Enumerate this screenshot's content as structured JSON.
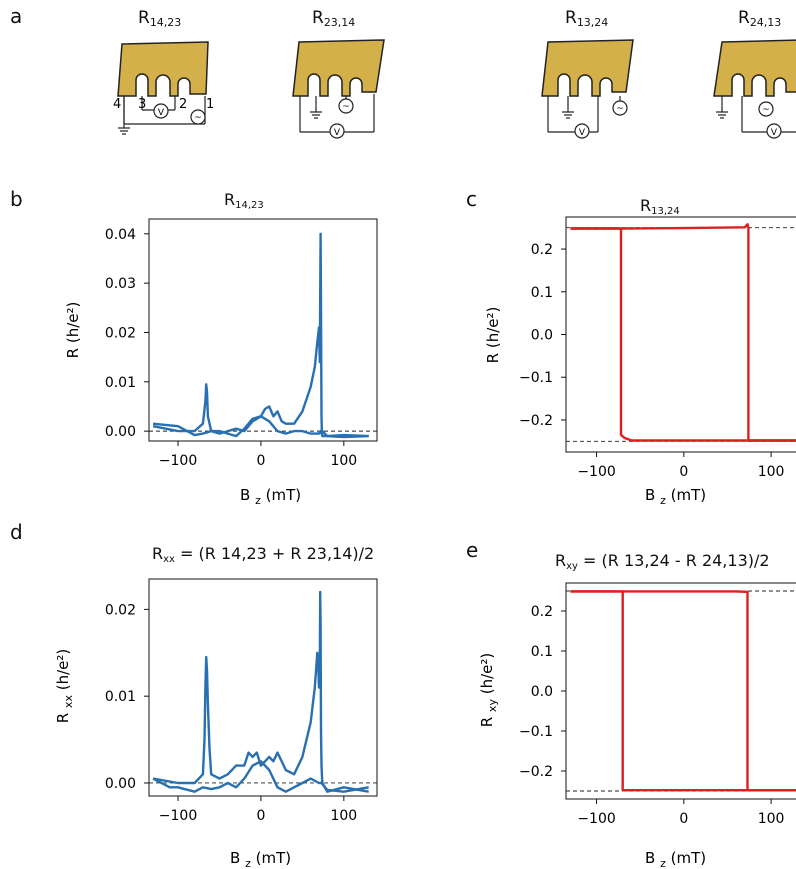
{
  "panels": {
    "a": "a",
    "b": "b",
    "c": "c",
    "d": "d",
    "e": "e"
  },
  "schematics": [
    {
      "label": "R",
      "sub": "14,23",
      "pins": [
        "4",
        "3",
        "2",
        "1"
      ],
      "v": "V"
    },
    {
      "label": "R",
      "sub": "23,14",
      "v": "V"
    },
    {
      "label": "R",
      "sub": "13,24",
      "v": "V"
    },
    {
      "label": "R",
      "sub": "24,13",
      "v": "V"
    }
  ],
  "colors": {
    "blue": "#2870b1",
    "red": "#dd1f1f",
    "gold": "#d4b04a"
  },
  "chart_data": [
    {
      "id": "b",
      "type": "line",
      "title": {
        "main": "R",
        "sub": "14,23",
        "rest": ""
      },
      "ylabel": {
        "main": "R",
        "sub": "",
        "rest": "(h/e²)"
      },
      "xlabel": {
        "main": "B",
        "sub": "z",
        "rest": "(mT)"
      },
      "xlim": [
        -135,
        140
      ],
      "ylim": [
        -0.002,
        0.043
      ],
      "xticks": [
        -100,
        0,
        100
      ],
      "xticklabels": [
        "−100",
        "0",
        "100"
      ],
      "yticks": [
        0,
        0.01,
        0.02,
        0.03,
        0.04
      ],
      "yticklabels": [
        "0.00",
        "0.01",
        "0.02",
        "0.03",
        "0.04"
      ],
      "hlines": [
        0
      ],
      "color": "#2870b1",
      "series": [
        {
          "x": [
            -130,
            -100,
            -80,
            -70,
            -67,
            -66,
            -65,
            -64,
            -60,
            -50,
            -40,
            -30,
            -20,
            -15,
            -10,
            -5,
            0,
            5,
            10,
            15,
            20,
            25,
            30,
            40,
            50,
            60,
            65,
            68,
            70,
            71,
            72,
            72.5,
            73,
            73.5,
            74,
            80,
            100,
            130
          ],
          "y": [
            0.001,
            0.0,
            0.0,
            0.0015,
            0.006,
            0.0095,
            0.008,
            0.003,
            0.0,
            -0.0005,
            0.0,
            0.0005,
            0.0,
            0.001,
            0.002,
            0.0025,
            0.003,
            0.0045,
            0.005,
            0.003,
            0.004,
            0.002,
            0.0015,
            0.0015,
            0.004,
            0.009,
            0.013,
            0.018,
            0.021,
            0.014,
            0.04,
            0.025,
            0.003,
            -0.0005,
            -0.001,
            -0.001,
            -0.0008,
            -0.001
          ]
        },
        {
          "x": [
            -130,
            -100,
            -80,
            -70,
            -60,
            -50,
            -40,
            -30,
            -20,
            -10,
            0,
            10,
            20,
            30,
            40,
            50,
            60,
            70,
            72,
            73,
            74,
            80,
            100,
            130
          ],
          "y": [
            0.0015,
            0.001,
            -0.0008,
            -0.0005,
            0.0,
            0.0,
            -0.0005,
            -0.001,
            0.0005,
            0.0025,
            0.003,
            0.002,
            0.0,
            -0.0005,
            0.0,
            0.0,
            -0.0005,
            -0.0005,
            0.0,
            -0.0005,
            0.0,
            -0.001,
            -0.0012,
            -0.001
          ]
        }
      ]
    },
    {
      "id": "c",
      "type": "line",
      "title": {
        "main": "R",
        "sub": "13,24",
        "rest": ""
      },
      "ylabel": {
        "main": "R",
        "sub": "",
        "rest": "(h/e²)"
      },
      "xlabel": {
        "main": "B",
        "sub": "z",
        "rest": "(mT)"
      },
      "xlim": [
        -135,
        140
      ],
      "ylim": [
        -0.275,
        0.275
      ],
      "xticks": [
        -100,
        0,
        100
      ],
      "xticklabels": [
        "−100",
        "0",
        "100"
      ],
      "yticks": [
        -0.2,
        -0.1,
        0.0,
        0.1,
        0.2
      ],
      "yticklabels": [
        "−0.2",
        "−0.1",
        "0.0",
        "0.1",
        "0.2"
      ],
      "hlines": [
        0.25,
        -0.25
      ],
      "color": "#dd1f1f",
      "series": [
        {
          "x": [
            -130,
            -72,
            -72,
            -68,
            -60,
            0,
            60,
            72,
            74,
            74,
            130
          ],
          "y": [
            0.248,
            0.248,
            -0.235,
            -0.242,
            -0.248,
            -0.248,
            -0.248,
            -0.248,
            -0.248,
            -0.248,
            -0.248
          ]
        },
        {
          "x": [
            -130,
            -72,
            0,
            70,
            73,
            74,
            74,
            130
          ],
          "y": [
            0.248,
            0.248,
            0.249,
            0.251,
            0.258,
            0.25,
            -0.248,
            -0.248
          ]
        }
      ]
    },
    {
      "id": "d",
      "type": "line",
      "title": {
        "main": "R",
        "sub": "xx",
        "rest": " = (R 14,23 + R 23,14)/2"
      },
      "ylabel": {
        "main": "R",
        "sub": "xx",
        "rest": "(h/e²)"
      },
      "xlabel": {
        "main": "B",
        "sub": "z",
        "rest": "(mT)"
      },
      "xlim": [
        -135,
        140
      ],
      "ylim": [
        -0.0015,
        0.0235
      ],
      "xticks": [
        -100,
        0,
        100
      ],
      "xticklabels": [
        "−100",
        "0",
        "100"
      ],
      "yticks": [
        0,
        0.01,
        0.02
      ],
      "yticklabels": [
        "0.00",
        "0.01",
        "0.02"
      ],
      "hlines": [
        0
      ],
      "color": "#2870b1",
      "series": [
        {
          "x": [
            -130,
            -100,
            -80,
            -70,
            -68,
            -67,
            -66,
            -65,
            -64,
            -62,
            -60,
            -50,
            -40,
            -30,
            -20,
            -15,
            -10,
            -5,
            0,
            5,
            10,
            15,
            20,
            25,
            30,
            40,
            50,
            60,
            65,
            68,
            69,
            70,
            71,
            71.5,
            72,
            72.5,
            73,
            74,
            80,
            100,
            130
          ],
          "y": [
            0.0005,
            0.0,
            0.0,
            0.001,
            0.005,
            0.011,
            0.0145,
            0.013,
            0.009,
            0.004,
            0.001,
            0.0005,
            0.001,
            0.002,
            0.002,
            0.0035,
            0.003,
            0.0035,
            0.002,
            0.0025,
            0.003,
            0.0025,
            0.0035,
            0.0025,
            0.0015,
            0.001,
            0.003,
            0.007,
            0.011,
            0.015,
            0.014,
            0.011,
            0.013,
            0.022,
            0.018,
            0.006,
            0.002,
            0.0,
            -0.001,
            -0.0005,
            -0.001
          ]
        },
        {
          "x": [
            -130,
            -110,
            -100,
            -80,
            -70,
            -60,
            -50,
            -40,
            -30,
            -20,
            -10,
            0,
            10,
            20,
            30,
            40,
            50,
            60,
            70,
            73,
            80,
            100,
            130
          ],
          "y": [
            0.0005,
            -0.0005,
            -0.0005,
            -0.001,
            -0.0005,
            -0.0007,
            -0.0005,
            0.0,
            -0.0005,
            0.0005,
            0.002,
            0.0025,
            0.0015,
            -0.0005,
            -0.001,
            -0.0005,
            0.0,
            0.0005,
            0.0,
            0.0,
            -0.0008,
            -0.001,
            -0.0005
          ]
        }
      ]
    },
    {
      "id": "e",
      "type": "line",
      "title": {
        "main": "R",
        "sub": "xy",
        "rest": " = (R 13,24 - R 24,13)/2"
      },
      "ylabel": {
        "main": "R",
        "sub": "xy",
        "rest": "(h/e²)"
      },
      "xlabel": {
        "main": "B",
        "sub": "z",
        "rest": "(mT)"
      },
      "xlim": [
        -135,
        140
      ],
      "ylim": [
        -0.27,
        0.27
      ],
      "xticks": [
        -100,
        0,
        100
      ],
      "xticklabels": [
        "−100",
        "0",
        "100"
      ],
      "yticks": [
        -0.2,
        -0.1,
        0.0,
        0.1,
        0.2
      ],
      "yticklabels": [
        "−0.2",
        "−0.1",
        "0.0",
        "0.1",
        "0.2"
      ],
      "hlines": [
        0.25,
        -0.25
      ],
      "color": "#dd1f1f",
      "series": [
        {
          "x": [
            -130,
            -70,
            -70,
            -60,
            0,
            60,
            73,
            73,
            130
          ],
          "y": [
            0.249,
            0.249,
            -0.248,
            -0.248,
            -0.248,
            -0.248,
            -0.248,
            -0.248,
            -0.248
          ]
        },
        {
          "x": [
            -130,
            -70,
            0,
            60,
            72,
            73,
            73,
            130
          ],
          "y": [
            0.249,
            0.249,
            0.249,
            0.249,
            0.248,
            0.247,
            -0.248,
            -0.248
          ]
        }
      ]
    }
  ]
}
